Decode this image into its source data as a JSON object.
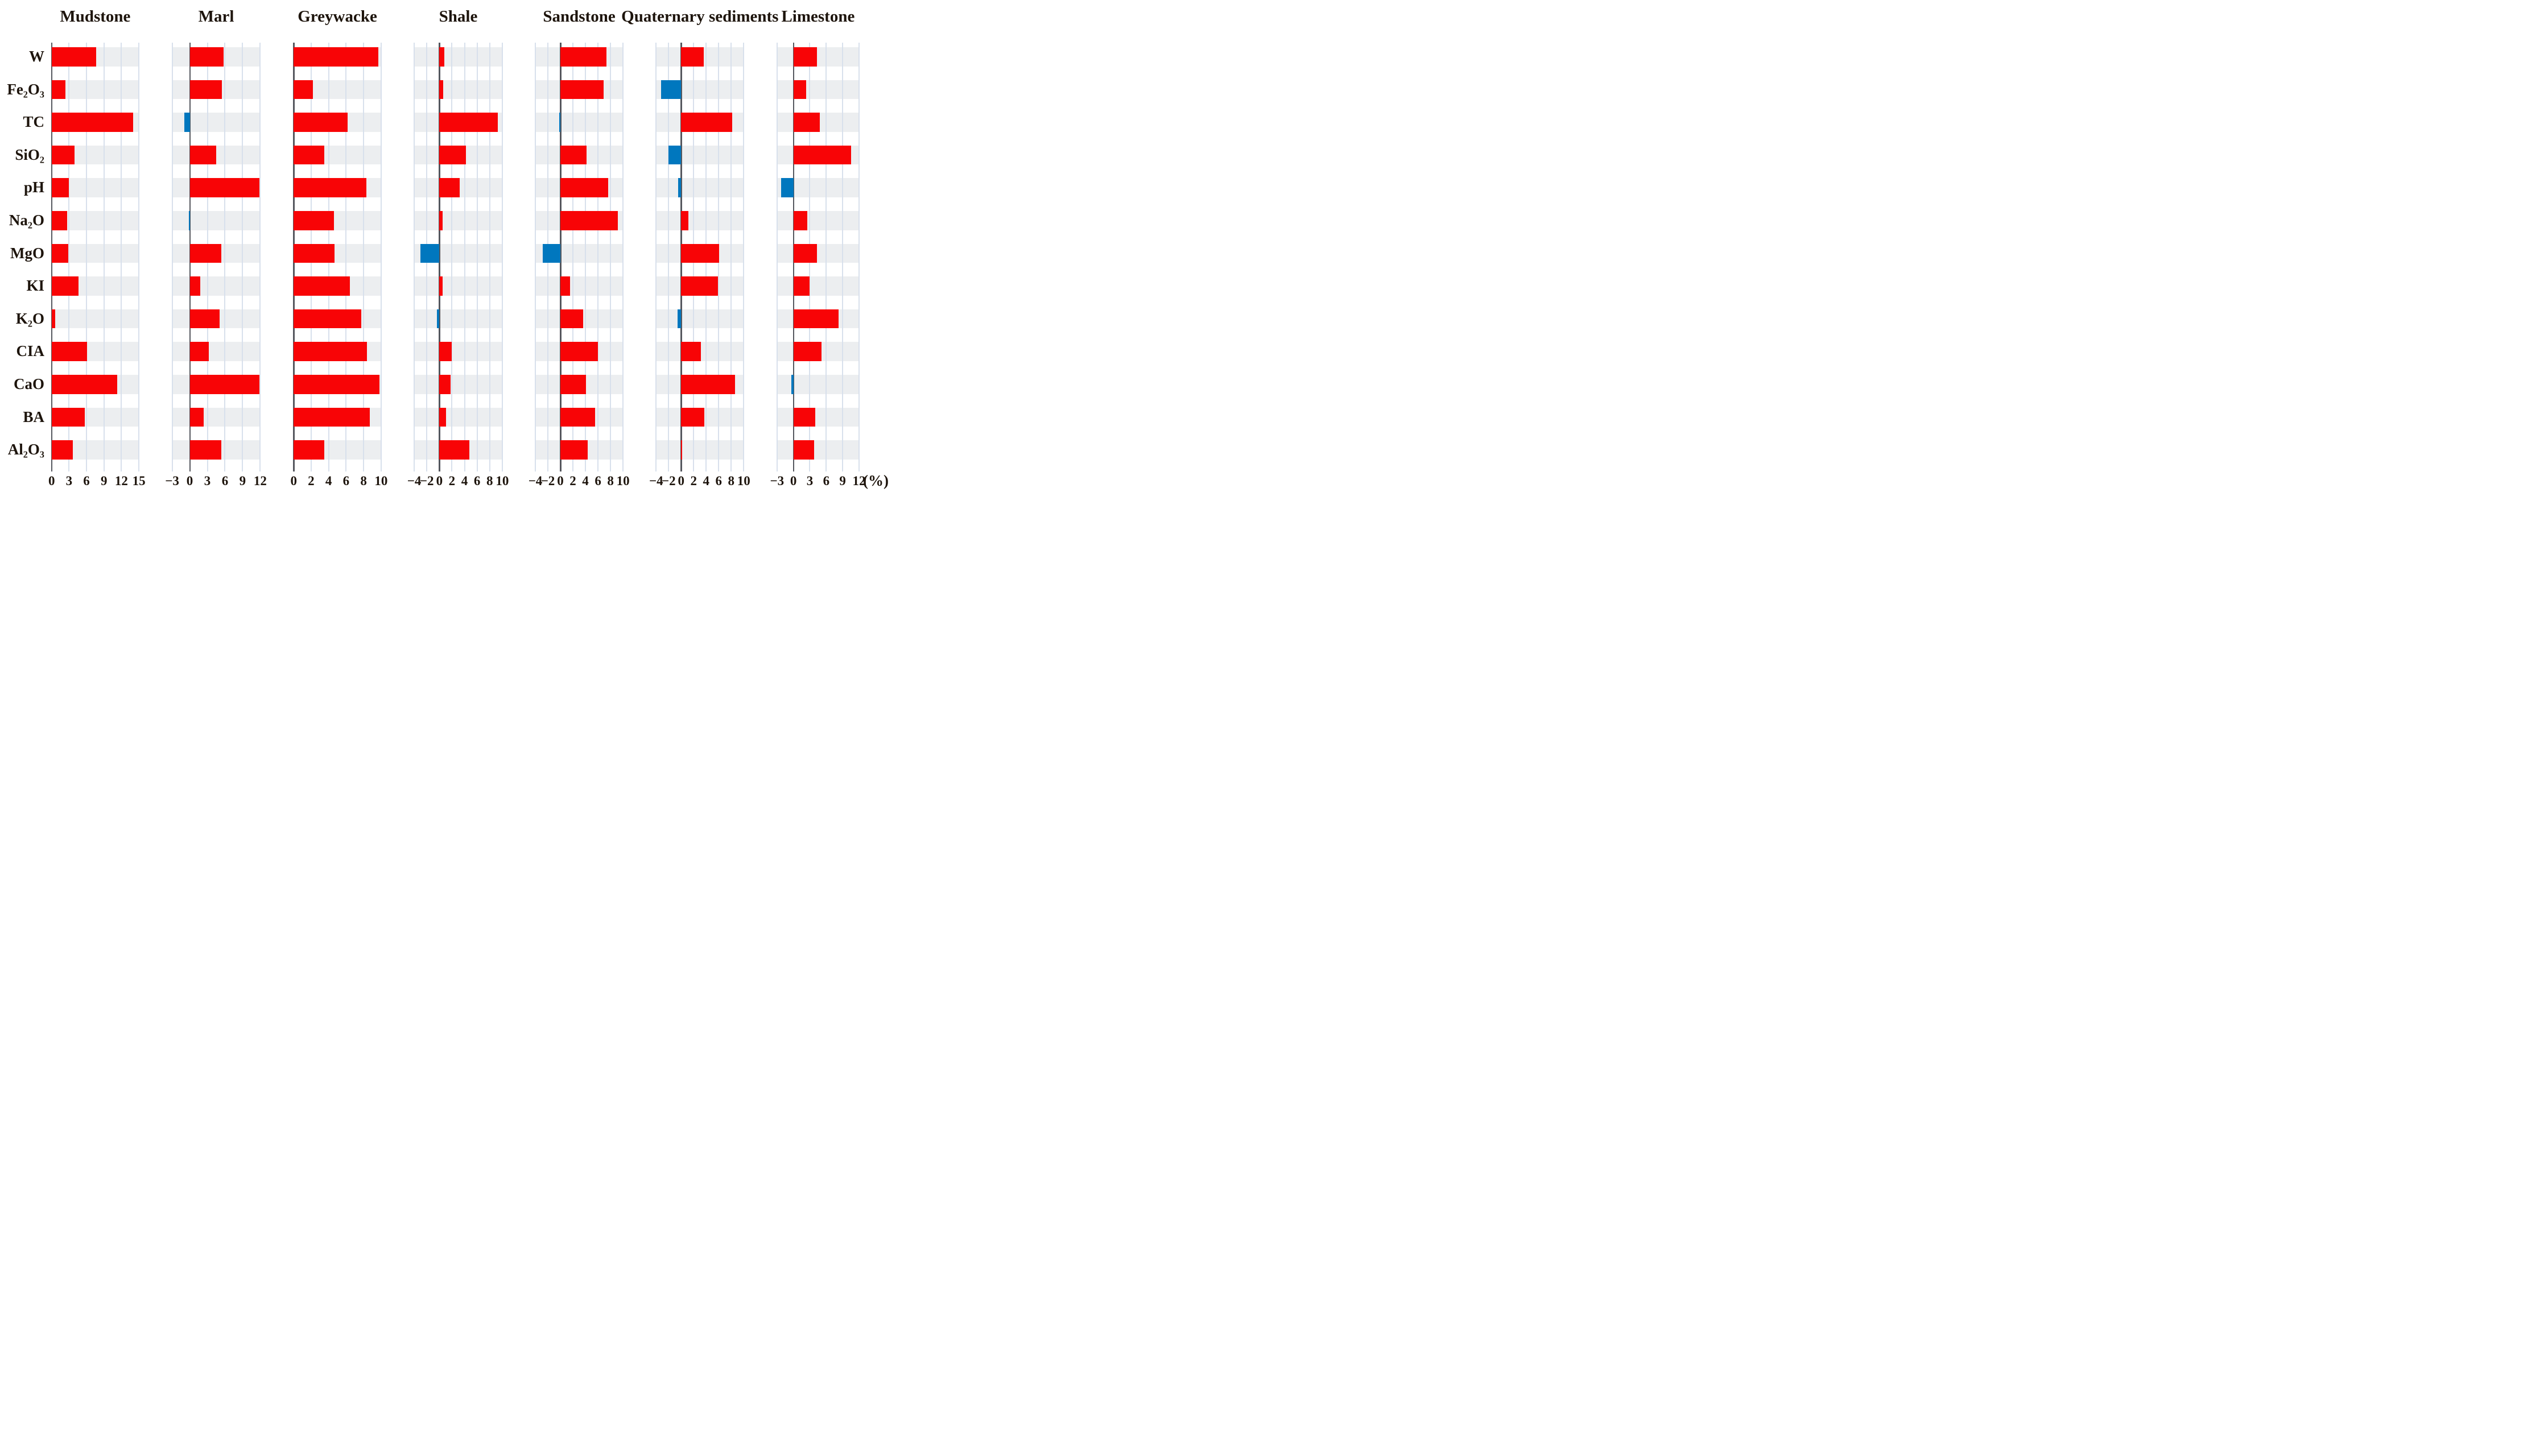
{
  "unit_label": "(%)",
  "colors": {
    "positive_bar": "#f80406",
    "negative_bar": "#0077be",
    "band_background": "#eceef0",
    "gridline": "#d8e0ec",
    "zero_axis": "#55575e",
    "text": "#1d140c"
  },
  "chart_data": {
    "type": "bar",
    "orientation": "horizontal",
    "grid": true,
    "legend": "none",
    "categories": [
      "W",
      "Fe₂O₃",
      "TC",
      "SiO₂",
      "pH",
      "Na₂O",
      "MgO",
      "KI",
      "K₂O",
      "CIA",
      "CaO",
      "BA",
      "Al₂O₃"
    ],
    "value_unit": "(%)",
    "panels": [
      {
        "title": "Mudstone",
        "xlim": [
          0,
          15
        ],
        "ticks": [
          0,
          3,
          6,
          9,
          12,
          15
        ],
        "values": [
          7.7,
          2.4,
          14.0,
          3.9,
          3.0,
          2.7,
          2.9,
          4.6,
          0.6,
          6.1,
          11.3,
          5.7,
          3.6
        ]
      },
      {
        "title": "Marl",
        "xlim": [
          -3,
          12
        ],
        "ticks": [
          -3,
          0,
          3,
          6,
          9,
          12
        ],
        "values": [
          5.8,
          5.5,
          -0.9,
          4.5,
          11.9,
          -0.08,
          5.4,
          1.8,
          5.1,
          3.2,
          11.9,
          2.4,
          5.4
        ]
      },
      {
        "title": "Greywacke",
        "xlim": [
          0,
          10
        ],
        "ticks": [
          0,
          2,
          4,
          6,
          8,
          10
        ],
        "values": [
          9.7,
          2.2,
          6.2,
          3.5,
          8.3,
          4.6,
          4.7,
          6.4,
          7.7,
          8.4,
          9.8,
          8.7,
          3.5
        ]
      },
      {
        "title": "Shale",
        "xlim": [
          -4,
          10
        ],
        "ticks": [
          -4,
          -2,
          0,
          2,
          4,
          6,
          8,
          10
        ],
        "values": [
          0.8,
          0.6,
          9.3,
          4.2,
          3.2,
          0.5,
          -3.0,
          0.5,
          -0.4,
          2.0,
          1.8,
          1.1,
          4.8
        ]
      },
      {
        "title": "Sandstone",
        "xlim": [
          -4,
          10
        ],
        "ticks": [
          -4,
          -2,
          0,
          2,
          4,
          6,
          8,
          10
        ],
        "values": [
          7.4,
          6.9,
          -0.15,
          4.2,
          7.6,
          9.2,
          -2.8,
          1.5,
          3.6,
          6.0,
          4.1,
          5.5,
          4.4
        ]
      },
      {
        "title": "Quaternary sediments",
        "xlim": [
          -4,
          10
        ],
        "ticks": [
          -4,
          -2,
          0,
          2,
          4,
          6,
          8,
          10
        ],
        "values": [
          3.6,
          -3.2,
          8.2,
          -2.0,
          -0.5,
          1.2,
          6.1,
          5.9,
          -0.6,
          3.2,
          8.6,
          3.7,
          0.15
        ]
      },
      {
        "title": "Limestone",
        "xlim": [
          -3,
          12
        ],
        "ticks": [
          -3,
          0,
          3,
          6,
          9,
          12
        ],
        "values": [
          4.3,
          2.3,
          4.8,
          10.5,
          -2.2,
          2.5,
          4.3,
          3.0,
          8.3,
          5.1,
          -0.4,
          4.0,
          3.8
        ]
      }
    ]
  }
}
